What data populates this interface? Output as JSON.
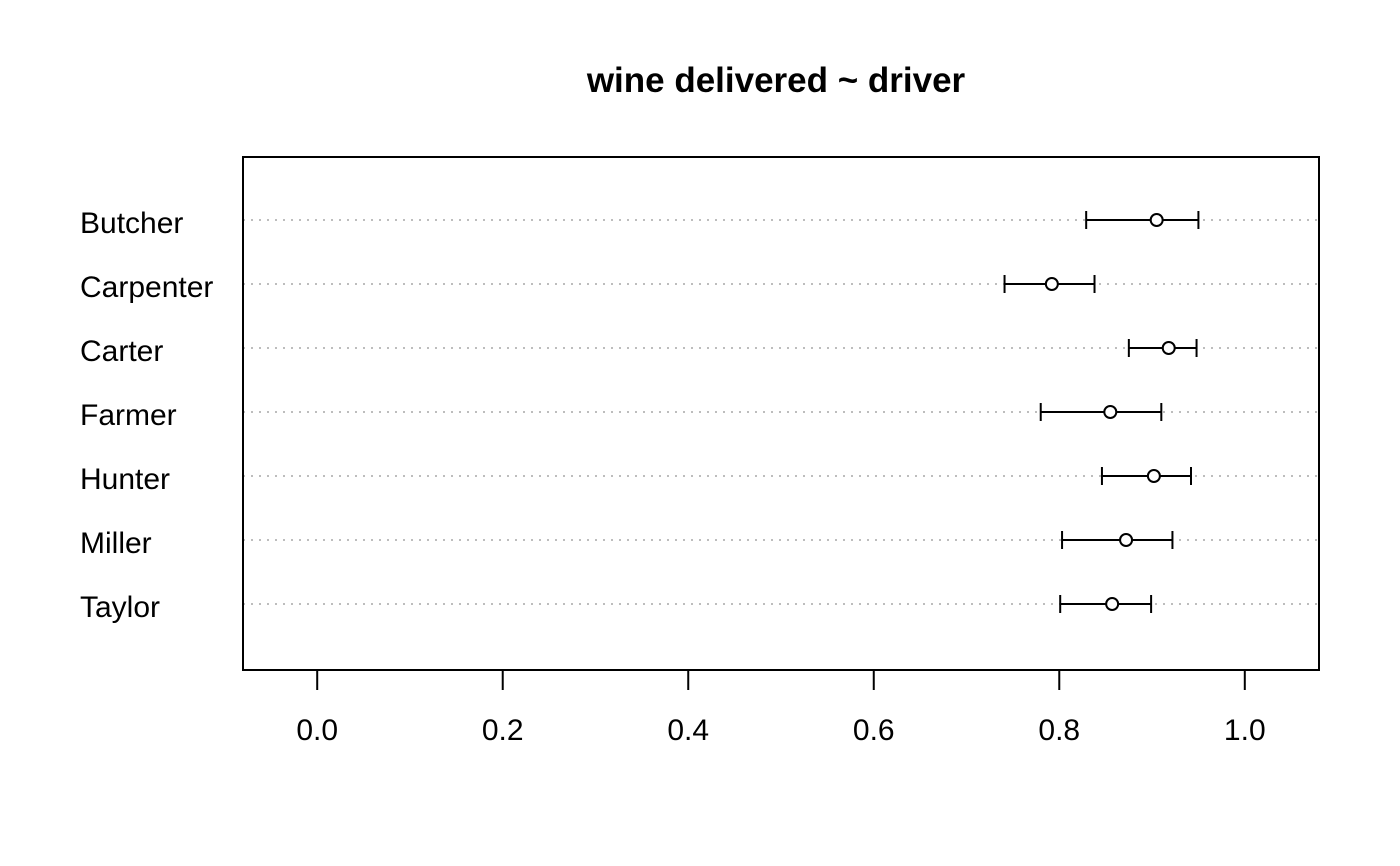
{
  "chart_data": {
    "type": "dotplot-errorbar",
    "title": "wine delivered ~ driver",
    "xlabel": "",
    "ylabel": "",
    "xlim": [
      -0.08,
      1.08
    ],
    "xticks": [
      0.0,
      0.2,
      0.4,
      0.6,
      0.8,
      1.0
    ],
    "xtick_labels": [
      "0.0",
      "0.2",
      "0.4",
      "0.6",
      "0.8",
      "1.0"
    ],
    "grid": "dotted horizontal guides per category",
    "categories": [
      "Butcher",
      "Carpenter",
      "Carter",
      "Farmer",
      "Hunter",
      "Miller",
      "Taylor"
    ],
    "estimate": [
      0.905,
      0.792,
      0.918,
      0.855,
      0.902,
      0.872,
      0.857
    ],
    "lower": [
      0.829,
      0.741,
      0.875,
      0.78,
      0.846,
      0.803,
      0.801
    ],
    "upper": [
      0.95,
      0.838,
      0.948,
      0.91,
      0.942,
      0.922,
      0.899
    ]
  }
}
